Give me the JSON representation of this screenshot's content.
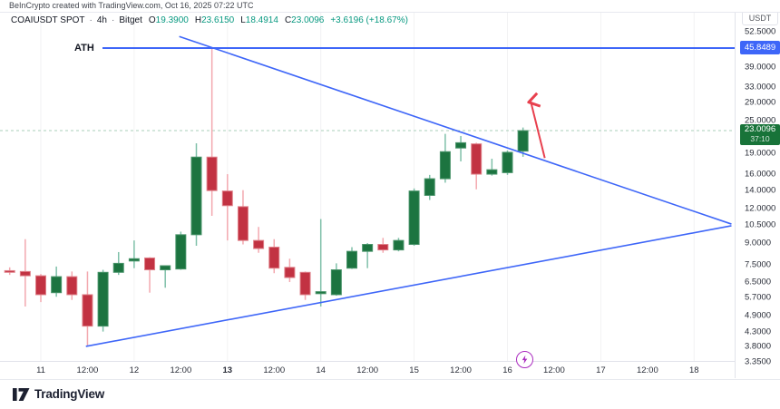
{
  "attribution": {
    "text": "BeInCrypto created with TradingView.com, Oct 16, 2025 07:22 UTC"
  },
  "ticker": {
    "symbol": "COAIUSDT SPOT",
    "interval": "4h",
    "exchange": "Bitget",
    "separator": "·",
    "ohlc": [
      {
        "label": "O",
        "value": "19.3900"
      },
      {
        "label": "H",
        "value": "23.6150"
      },
      {
        "label": "L",
        "value": "18.4914"
      },
      {
        "label": "C",
        "value": "23.0096"
      }
    ],
    "change": "+3.6196 (+18.67%)"
  },
  "annotations": {
    "ath_text": "ATH"
  },
  "price_axis": {
    "currency_label": "USDT",
    "ticks": [
      "52.5000",
      "39.0000",
      "33.0000",
      "29.0000",
      "25.0000",
      "19.0000",
      "16.0000",
      "14.0000",
      "12.0000",
      "10.5000",
      "9.0000",
      "7.5000",
      "6.5000",
      "5.7000",
      "4.9000",
      "4.3000",
      "3.8000",
      "3.3500"
    ],
    "ath_label": {
      "price": "45.8489",
      "value": 45.8489
    },
    "last_price_label": {
      "price": "23.0096",
      "countdown": "37:10",
      "value": 23.0096
    }
  },
  "time_axis": {
    "ticks": [
      {
        "label": "11"
      },
      {
        "label": "12:00"
      },
      {
        "label": "12"
      },
      {
        "label": "12:00"
      },
      {
        "label": "13",
        "emphasis": true
      },
      {
        "label": "12:00"
      },
      {
        "label": "14"
      },
      {
        "label": "12:00"
      },
      {
        "label": "15"
      },
      {
        "label": "12:00"
      },
      {
        "label": "16"
      },
      {
        "label": "12:00"
      },
      {
        "label": "17"
      },
      {
        "label": "12:00"
      },
      {
        "label": "18"
      }
    ]
  },
  "branding": {
    "logo_text": "TradingView"
  },
  "colors": {
    "up_body": "#1c7440",
    "up_wick": "#7fc0a9",
    "up_border": "#49946a",
    "down_body": "#c23242",
    "down_wick": "#f3a8af",
    "down_border": "#df8089",
    "trendline_blue": "#3e66f8",
    "arrow_red": "#e8404e",
    "last_price_dash": "#a9cfba",
    "teal_value": "#089981",
    "ath_box": "#3e66f8",
    "last_box": "#187339",
    "event_purple": "#aa2bbf"
  },
  "chart_data": {
    "type": "candlestick",
    "title": "COAIUSDT SPOT · 4h · Bitget",
    "scale": "log",
    "ylabel": "USDT",
    "ylim": [
      3.35,
      52.5
    ],
    "x_range_dates": [
      "Oct 10 16:00",
      "Oct 16 04:00"
    ],
    "grid": "vertical-day-lines",
    "legend_position": "none",
    "candles": [
      {
        "o": 7.15,
        "h": 7.35,
        "l": 6.9,
        "c": 7.05
      },
      {
        "o": 7.1,
        "h": 9.3,
        "l": 5.3,
        "c": 6.85
      },
      {
        "o": 6.85,
        "h": 6.95,
        "l": 5.5,
        "c": 5.85
      },
      {
        "o": 5.95,
        "h": 7.4,
        "l": 5.75,
        "c": 6.8
      },
      {
        "o": 6.8,
        "h": 7.1,
        "l": 5.6,
        "c": 5.85
      },
      {
        "o": 5.85,
        "h": 7.1,
        "l": 3.8,
        "c": 4.5
      },
      {
        "o": 4.5,
        "h": 7.2,
        "l": 4.3,
        "c": 7.05
      },
      {
        "o": 7.05,
        "h": 8.35,
        "l": 6.9,
        "c": 7.6
      },
      {
        "o": 7.75,
        "h": 9.2,
        "l": 7.3,
        "c": 7.9
      },
      {
        "o": 7.95,
        "h": 8.0,
        "l": 5.95,
        "c": 7.2
      },
      {
        "o": 7.2,
        "h": 7.45,
        "l": 6.2,
        "c": 7.45
      },
      {
        "o": 7.25,
        "h": 9.9,
        "l": 7.2,
        "c": 9.65
      },
      {
        "o": 9.65,
        "h": 20.7,
        "l": 8.8,
        "c": 18.45
      },
      {
        "o": 18.45,
        "h": 45.8489,
        "l": 11.3,
        "c": 13.95
      },
      {
        "o": 13.9,
        "h": 16.0,
        "l": 9.2,
        "c": 12.3
      },
      {
        "o": 12.2,
        "h": 14.0,
        "l": 8.9,
        "c": 9.2
      },
      {
        "o": 9.2,
        "h": 10.3,
        "l": 8.3,
        "c": 8.6
      },
      {
        "o": 8.7,
        "h": 9.3,
        "l": 7.0,
        "c": 7.3
      },
      {
        "o": 7.35,
        "h": 7.9,
        "l": 6.5,
        "c": 6.75
      },
      {
        "o": 7.05,
        "h": 7.1,
        "l": 5.6,
        "c": 5.85
      },
      {
        "o": 5.9,
        "h": 11.0,
        "l": 5.3,
        "c": 6.0
      },
      {
        "o": 5.85,
        "h": 7.6,
        "l": 5.8,
        "c": 7.2
      },
      {
        "o": 7.3,
        "h": 8.7,
        "l": 7.25,
        "c": 8.4
      },
      {
        "o": 8.4,
        "h": 9.0,
        "l": 7.3,
        "c": 8.9
      },
      {
        "o": 8.9,
        "h": 9.4,
        "l": 8.3,
        "c": 8.5
      },
      {
        "o": 8.5,
        "h": 9.4,
        "l": 8.4,
        "c": 9.2
      },
      {
        "o": 8.9,
        "h": 14.2,
        "l": 8.8,
        "c": 13.9
      },
      {
        "o": 13.4,
        "h": 15.9,
        "l": 12.9,
        "c": 15.4
      },
      {
        "o": 15.4,
        "h": 22.4,
        "l": 14.9,
        "c": 19.3
      },
      {
        "o": 19.9,
        "h": 22.0,
        "l": 17.8,
        "c": 20.8
      },
      {
        "o": 20.6,
        "h": 20.8,
        "l": 14.1,
        "c": 16.0
      },
      {
        "o": 16.0,
        "h": 18.2,
        "l": 15.8,
        "c": 16.6
      },
      {
        "o": 16.2,
        "h": 19.5,
        "l": 15.9,
        "c": 19.2
      },
      {
        "o": 19.39,
        "h": 23.615,
        "l": 18.4914,
        "c": 23.0096
      }
    ],
    "ath_line": {
      "price": 45.8489,
      "label": "ATH"
    },
    "last_price_line": {
      "price": 23.0096
    },
    "trendlines": [
      {
        "name": "descending-resistance",
        "from": {
          "i": 10.9,
          "price": 50.5
        },
        "to": {
          "i": 46.4,
          "price": 10.55
        }
      },
      {
        "name": "ascending-support",
        "from": {
          "i": 4.9,
          "price": 3.8
        },
        "to": {
          "i": 46.4,
          "price": 10.4
        }
      }
    ],
    "arrow": {
      "from": {
        "i": 34.4,
        "price": 18.3
      },
      "to": {
        "i": 33.5,
        "price": 29.3
      }
    }
  }
}
